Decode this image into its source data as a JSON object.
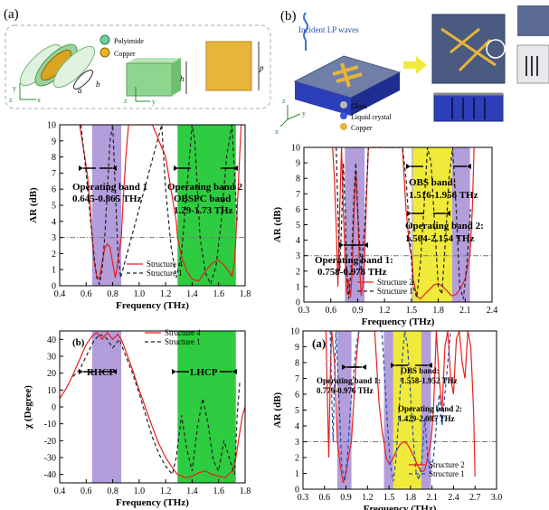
{
  "panels": {
    "a": "(a)",
    "b": "(b)",
    "b_sub": "(b)",
    "a_sub2": "(a)"
  },
  "schematic_a": {
    "legend": [
      "Polyimide",
      "Copper"
    ],
    "dim_labels": [
      "a",
      "b",
      "h",
      "p"
    ],
    "axes": [
      "x",
      "y",
      "z"
    ]
  },
  "schematic_b": {
    "incident_label": "Incident LP waves",
    "legend": [
      "Glass",
      "Liquid crystal",
      "Copper"
    ],
    "axes": [
      "x",
      "y",
      "z"
    ]
  },
  "colors": {
    "purple_band": "#b39ddb",
    "green_band": "#2ecc40",
    "yellow_band": "#f0ea3a",
    "structure_red": "#e8201e",
    "structure_dash": "#222222",
    "structure_blue_dash": "#1f4fb0",
    "threshold": "#777777"
  },
  "chart_data": [
    {
      "id": "a-top",
      "type": "line",
      "xlabel": "Frequency (THz)",
      "ylabel": "AR (dB)",
      "xlim": [
        0.4,
        1.8
      ],
      "ylim": [
        0,
        10
      ],
      "xticks": [
        0.4,
        0.6,
        0.8,
        1.0,
        1.2,
        1.4,
        1.6,
        1.8
      ],
      "xtick_labels": [
        "0.4",
        "0.6",
        "0.8",
        "1.0",
        "1.2",
        "1.4",
        "1.6",
        "1.8"
      ],
      "yticks": [
        0,
        1,
        2,
        3,
        4,
        5,
        6,
        7,
        8,
        9,
        10
      ],
      "ytick_labels": [
        "0",
        "1",
        "2",
        "3",
        "4",
        "5",
        "6",
        "7",
        "8",
        "9",
        "10"
      ],
      "threshold": 3,
      "bands": [
        {
          "from": 0.645,
          "to": 0.865,
          "color": "purple"
        },
        {
          "from": 1.29,
          "to": 1.73,
          "color": "green"
        }
      ],
      "annotations": [
        "Operating band 1",
        "0.645-0.865 THz",
        "Operating band 2",
        "OBSPC band",
        "1.29-1.73 THz"
      ],
      "series": [
        {
          "name": "Structure 4",
          "style": "solid-red",
          "x": [
            0.55,
            0.57,
            0.59,
            0.61,
            0.63,
            0.645,
            0.66,
            0.68,
            0.7,
            0.72,
            0.74,
            0.76,
            0.78,
            0.8,
            0.82,
            0.84,
            0.865,
            0.88,
            0.9,
            0.92,
            1.1,
            1.2,
            1.28,
            1.29,
            1.32,
            1.36,
            1.4,
            1.45,
            1.5,
            1.55,
            1.6,
            1.65,
            1.7,
            1.72,
            1.73,
            1.75,
            1.77
          ],
          "y": [
            10,
            9.0,
            8.0,
            6.8,
            5.0,
            3.0,
            1.5,
            0.6,
            0.4,
            1.5,
            2.3,
            2.6,
            2.4,
            1.4,
            0.5,
            1.5,
            3.0,
            5.5,
            8.0,
            10,
            10,
            8.0,
            4.0,
            3.0,
            1.8,
            0.9,
            0.4,
            0.3,
            0.9,
            1.4,
            1.6,
            1.2,
            0.6,
            1.5,
            3.0,
            6.5,
            10
          ]
        },
        {
          "name": "Structure 1",
          "style": "dashed-black",
          "x": [
            0.56,
            0.58,
            0.6,
            0.62,
            0.64,
            0.66,
            0.68,
            0.7,
            0.72,
            0.74,
            0.76,
            0.78,
            0.8,
            0.82,
            0.84,
            0.86,
            1.17,
            1.2,
            1.24,
            1.28,
            1.32,
            1.36,
            1.4,
            1.42,
            1.44,
            1.46,
            1.5,
            1.54,
            1.58,
            1.62,
            1.66,
            1.7,
            1.72,
            1.74
          ],
          "y": [
            10,
            8.5,
            7.0,
            5.2,
            3.5,
            1.8,
            0.5,
            0.1,
            1.0,
            3.0,
            6.0,
            9.0,
            10,
            6.0,
            2.0,
            0.5,
            10,
            6.0,
            2.5,
            0.5,
            2.0,
            6.0,
            10,
            9.0,
            6.0,
            3.0,
            0.8,
            0.1,
            1.2,
            4.0,
            8.0,
            10,
            7.0,
            4.0
          ]
        }
      ]
    },
    {
      "id": "a-bottom",
      "type": "line",
      "xlabel": "Frequency (THz)",
      "ylabel": "χ (Degree)",
      "xlim": [
        0.4,
        1.8
      ],
      "ylim": [
        -45,
        45
      ],
      "xticks": [
        0.4,
        0.6,
        0.8,
        1.0,
        1.2,
        1.4,
        1.6,
        1.8
      ],
      "xtick_labels": [
        "0.4",
        "0.6",
        "0.8",
        "1.0",
        "1.2",
        "1.4",
        "1.6",
        "1.8"
      ],
      "yticks": [
        -40,
        -30,
        -20,
        -10,
        0,
        10,
        20,
        30,
        40
      ],
      "ytick_labels": [
        "-40",
        "-30",
        "-20",
        "-10",
        "0",
        "10",
        "20",
        "30",
        "40"
      ],
      "bands": [
        {
          "from": 0.645,
          "to": 0.865,
          "color": "purple"
        },
        {
          "from": 1.29,
          "to": 1.73,
          "color": "green"
        }
      ],
      "annotations": [
        "RHCP",
        "LHCP"
      ],
      "series": [
        {
          "name": "Structure 4",
          "style": "solid-red",
          "x": [
            0.4,
            0.45,
            0.5,
            0.55,
            0.6,
            0.645,
            0.68,
            0.72,
            0.76,
            0.8,
            0.84,
            0.865,
            0.9,
            0.95,
            1.0,
            1.05,
            1.1,
            1.15,
            1.2,
            1.25,
            1.29,
            1.35,
            1.4,
            1.45,
            1.5,
            1.55,
            1.6,
            1.65,
            1.7,
            1.73,
            1.76,
            1.78,
            1.8
          ],
          "y": [
            5,
            11,
            19,
            28,
            37,
            42,
            44,
            40,
            44,
            40,
            43,
            40,
            33,
            22,
            10,
            -1,
            -12,
            -22,
            -30,
            -36,
            -40,
            -42,
            -41,
            -39,
            -38,
            -40,
            -41,
            -42,
            -38,
            -30,
            -15,
            -5,
            0
          ]
        },
        {
          "name": "Structure 1",
          "style": "dashed-black",
          "x": [
            0.5,
            0.55,
            0.6,
            0.65,
            0.7,
            0.75,
            0.8,
            0.85,
            0.9,
            0.95,
            1.0,
            1.05,
            1.1,
            1.15,
            1.2,
            1.25,
            1.28,
            1.32,
            1.36,
            1.4,
            1.44,
            1.48,
            1.52,
            1.56,
            1.6,
            1.64,
            1.68,
            1.72,
            1.74,
            1.76
          ],
          "y": [
            18,
            22,
            30,
            38,
            43,
            41,
            35,
            40,
            30,
            20,
            8,
            -5,
            -18,
            -28,
            -35,
            -40,
            -30,
            -5,
            -25,
            -38,
            -12,
            5,
            -10,
            -32,
            -38,
            -20,
            -30,
            -40,
            -5,
            15
          ]
        }
      ],
      "legend": [
        "Structure 4",
        "Structure 1"
      ]
    },
    {
      "id": "b-top",
      "type": "line",
      "xlabel": "Frequency (THz)",
      "ylabel": "AR (dB)",
      "xlim": [
        0.3,
        2.4
      ],
      "ylim": [
        0,
        10
      ],
      "xticks": [
        0.3,
        0.6,
        0.9,
        1.2,
        1.5,
        1.8,
        2.1,
        2.4
      ],
      "xtick_labels": [
        "0.3",
        "0.6",
        "0.9",
        "1.2",
        "1.5",
        "1.8",
        "2.1",
        "2.4"
      ],
      "yticks": [
        0,
        1,
        2,
        3,
        4,
        5,
        6,
        7,
        8,
        9,
        10
      ],
      "ytick_labels": [
        "0",
        "1",
        "2",
        "3",
        "4",
        "5",
        "6",
        "7",
        "8",
        "9",
        "10"
      ],
      "threshold": 3,
      "bands": [
        {
          "from": 0.758,
          "to": 0.978,
          "color": "purple"
        },
        {
          "from": 1.504,
          "to": 2.154,
          "color": "purple"
        },
        {
          "from": 1.516,
          "to": 1.956,
          "color": "yellow"
        }
      ],
      "annotations": [
        "OBS band:",
        "1.516-1.956 THz",
        "Operating band 2:",
        "1.504-2.154 THz",
        "Operating band 1:",
        "0.758-0.978 THz"
      ],
      "series": [
        {
          "name": "Structure 2",
          "style": "solid-red",
          "x": [
            0.62,
            0.64,
            0.66,
            0.68,
            0.7,
            0.72,
            0.74,
            0.758,
            0.78,
            0.8,
            0.82,
            0.84,
            0.86,
            0.88,
            0.9,
            0.92,
            0.94,
            0.96,
            0.978,
            1.0,
            1.02,
            1.4,
            1.44,
            1.48,
            1.504,
            1.52,
            1.56,
            1.6,
            1.65,
            1.7,
            1.75,
            1.8,
            1.85,
            1.9,
            1.95,
            2.0,
            2.05,
            2.1,
            2.154,
            2.18,
            2.2
          ],
          "y": [
            10,
            8.0,
            5.0,
            1.0,
            6.0,
            10,
            6.0,
            3.0,
            0.5,
            1.5,
            0.3,
            2.0,
            6.0,
            8.5,
            6.0,
            2.5,
            0.4,
            1.2,
            3.0,
            7.0,
            10,
            10,
            6.0,
            3.5,
            3.0,
            1.5,
            0.4,
            0.2,
            0.5,
            0.8,
            1.1,
            1.2,
            1.0,
            0.7,
            0.4,
            0.5,
            0.9,
            1.5,
            3.0,
            6.0,
            10
          ]
        },
        {
          "name": "Structure 1",
          "style": "dashed-black",
          "x": [
            0.66,
            0.68,
            0.7,
            0.72,
            0.74,
            0.76,
            0.78,
            0.8,
            0.82,
            0.84,
            0.86,
            0.88,
            0.9,
            0.94,
            0.98,
            1.02,
            1.4,
            1.44,
            1.48,
            1.52,
            1.56,
            1.6,
            1.64,
            1.68,
            1.72,
            1.76,
            1.8,
            1.84,
            1.88,
            1.92,
            1.96,
            2.0,
            2.04,
            2.08,
            2.12,
            2.16
          ],
          "y": [
            10,
            6.0,
            2.0,
            5.0,
            9.0,
            6.0,
            2.0,
            0.2,
            1.5,
            4.0,
            7.0,
            9.0,
            6.0,
            2.0,
            5.0,
            10,
            10,
            8.0,
            4.5,
            1.0,
            0.3,
            2.5,
            6.0,
            10,
            9.0,
            5.0,
            1.0,
            0.5,
            4.0,
            8.0,
            10,
            6.0,
            1.0,
            0.2,
            2.5,
            6.0
          ]
        }
      ],
      "legend": [
        "Structure 2",
        "Structure 1"
      ]
    },
    {
      "id": "b-bottom",
      "type": "line",
      "xlabel": "Frequency (THz)",
      "ylabel": "AR (dB)",
      "xlim": [
        0.3,
        3.0
      ],
      "ylim": [
        0,
        10
      ],
      "xticks": [
        0.3,
        0.6,
        0.9,
        1.2,
        1.5,
        1.8,
        2.1,
        2.4,
        2.7,
        3.0
      ],
      "xtick_labels": [
        "0.3",
        "0.6",
        "0.9",
        "1.2",
        "1.5",
        "1.8",
        "2.1",
        "2.4",
        "2.7",
        "3.0"
      ],
      "yticks": [
        0,
        1,
        2,
        3,
        4,
        5,
        6,
        7,
        8,
        9,
        10
      ],
      "ytick_labels": [
        "0",
        "1",
        "2",
        "3",
        "4",
        "5",
        "6",
        "7",
        "8",
        "9",
        "10"
      ],
      "threshold": 3,
      "bands": [
        {
          "from": 0.779,
          "to": 0.976,
          "color": "purple"
        },
        {
          "from": 1.429,
          "to": 2.085,
          "color": "purple"
        },
        {
          "from": 1.558,
          "to": 1.952,
          "color": "yellow"
        }
      ],
      "annotations": [
        "Operating band 1:",
        "0.779-0.976 THz",
        "OBS band:",
        "1.558-1.952 THz",
        "Operating band 2:",
        "1.429-2.085 THz"
      ],
      "series": [
        {
          "name": "Structure 2",
          "style": "solid-red",
          "x": [
            0.62,
            0.64,
            0.66,
            0.68,
            0.7,
            0.74,
            0.779,
            0.82,
            0.86,
            0.9,
            0.94,
            0.976,
            1.0,
            1.04,
            1.08,
            1.3,
            1.36,
            1.4,
            1.429,
            1.46,
            1.5,
            1.55,
            1.6,
            1.65,
            1.7,
            1.75,
            1.8,
            1.85,
            1.9,
            1.95,
            2.0,
            2.04,
            2.085,
            2.12,
            2.16,
            2.2,
            2.24,
            2.28,
            2.32,
            2.36,
            2.4,
            2.44,
            2.48,
            2.52,
            2.56,
            2.6,
            2.64,
            2.68,
            2.7
          ],
          "y": [
            10,
            6.0,
            2.0,
            7.0,
            10,
            8.0,
            3.0,
            1.5,
            0.4,
            1.0,
            2.2,
            3.0,
            5.0,
            8.0,
            10,
            10,
            5.5,
            3.8,
            3.0,
            2.0,
            1.6,
            1.9,
            2.4,
            2.8,
            3.0,
            2.9,
            2.5,
            2.0,
            1.5,
            1.1,
            1.2,
            2.0,
            3.0,
            5.0,
            10,
            7.0,
            5.0,
            9.0,
            10,
            7.0,
            6.0,
            9.5,
            10,
            8.0,
            7.0,
            10,
            9.0,
            5.0,
            0.8
          ]
        },
        {
          "name": "Structure 1",
          "style": "dashed-blue",
          "x": [
            0.68,
            0.7,
            0.72,
            0.74,
            0.76,
            0.8,
            0.84,
            0.88,
            0.92,
            0.96,
            1.0,
            1.04,
            1.08,
            1.4,
            1.44,
            1.48,
            1.52,
            1.56,
            1.6,
            1.64,
            1.68,
            1.72,
            1.76,
            1.8,
            1.84,
            1.88,
            1.92,
            1.96,
            2.0,
            2.04,
            2.08,
            2.12,
            2.16,
            2.2,
            2.24,
            2.28,
            2.32,
            2.36
          ],
          "y": [
            10,
            6.0,
            3.0,
            7.0,
            10,
            6.0,
            1.5,
            0.5,
            2.0,
            5.0,
            7.0,
            9.0,
            10,
            10,
            7.0,
            4.0,
            1.5,
            0.5,
            2.0,
            5.0,
            8.0,
            10,
            9.0,
            6.0,
            3.0,
            1.0,
            0.6,
            2.0,
            4.5,
            2.0,
            1.0,
            2.0,
            4.0,
            6.0,
            4.0,
            6.0,
            8.0,
            10
          ]
        }
      ],
      "legend": [
        "Structure 2",
        "Structure 1"
      ]
    }
  ]
}
